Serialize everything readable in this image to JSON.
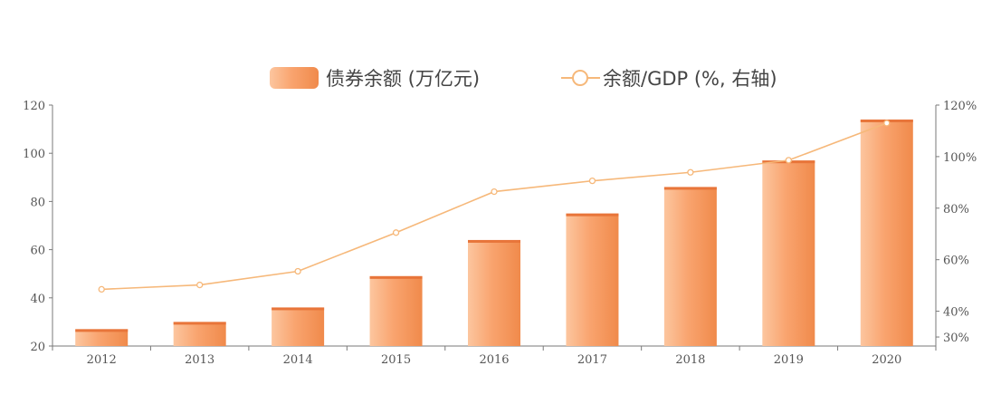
{
  "chart_data": {
    "type": "bar",
    "categories": [
      "2012",
      "2013",
      "2014",
      "2015",
      "2016",
      "2017",
      "2018",
      "2019",
      "2020"
    ],
    "series": [
      {
        "name": "债券余额 (万亿元)",
        "type": "bar",
        "axis": "left",
        "color": "#f5945a",
        "values": [
          27,
          30,
          36,
          49,
          64,
          75,
          86,
          97,
          114
        ]
      },
      {
        "name": "余额/GDP (%, 右轴)",
        "type": "line",
        "axis": "right",
        "color": "#f6b87a",
        "values": [
          48.5,
          50.2,
          55.5,
          70.5,
          86.4,
          90.6,
          93.9,
          98.6,
          113
        ]
      }
    ],
    "y_left": {
      "min": 20,
      "max": 120,
      "ticks": [
        "20",
        "40",
        "60",
        "80",
        "100",
        "120"
      ],
      "tick_values": [
        20,
        40,
        60,
        80,
        100,
        120
      ]
    },
    "y_right": {
      "min": 26.5,
      "max": 120,
      "ticks": [
        "30%",
        "40%",
        "60%",
        "80%",
        "100%",
        "120%"
      ],
      "tick_values": [
        30,
        40,
        60,
        80,
        100,
        120
      ]
    },
    "legend_position": "top-center",
    "grid": false
  }
}
